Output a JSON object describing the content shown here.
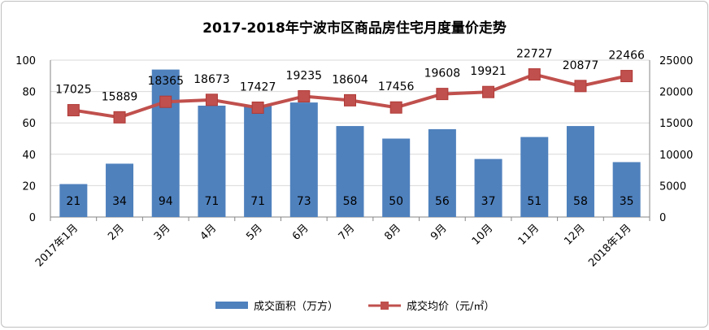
{
  "chart_data": {
    "type": "bar+line",
    "title": "2017-2018年宁波市区商品房住宅月度量价走势",
    "categories": [
      "2017年1月",
      "2月",
      "3月",
      "4月",
      "5月",
      "6月",
      "7月",
      "8月",
      "9月",
      "10月",
      "11月",
      "12月",
      "2018年1月"
    ],
    "series": [
      {
        "name": "成交面积（万方）",
        "type": "bar",
        "axis": "left",
        "color": "#4f81bd",
        "values": [
          21,
          34,
          94,
          71,
          71,
          73,
          58,
          50,
          56,
          37,
          51,
          58,
          35
        ],
        "labels": [
          "21",
          "34",
          "94",
          "71",
          "71",
          "73",
          "58",
          "50",
          "56",
          "37",
          "51",
          "58",
          "35"
        ]
      },
      {
        "name": "成交均价（元/㎡）",
        "type": "line",
        "axis": "right",
        "color": "#c0504d",
        "values": [
          17025,
          15889,
          18365,
          18673,
          17427,
          19235,
          18604,
          17456,
          19608,
          19921,
          22727,
          20877,
          22466
        ],
        "labels": [
          "17025",
          "15889",
          "18365",
          "18673",
          "17427",
          "19235",
          "18604",
          "17456",
          "19608",
          "19921",
          "22727",
          "20877",
          "22466"
        ]
      }
    ],
    "y_left": {
      "range": [
        0,
        100
      ],
      "ticks": [
        "0",
        "20",
        "40",
        "60",
        "80",
        "100"
      ]
    },
    "y_right": {
      "range": [
        0,
        25000
      ],
      "ticks": [
        "0",
        "5000",
        "10000",
        "15000",
        "20000",
        "25000"
      ]
    },
    "grid": true,
    "legend": "bottom"
  }
}
